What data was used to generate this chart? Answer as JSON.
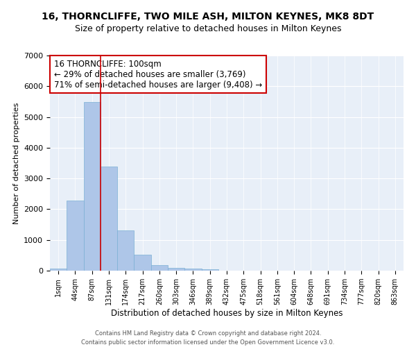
{
  "title": "16, THORNCLIFFE, TWO MILE ASH, MILTON KEYNES, MK8 8DT",
  "subtitle": "Size of property relative to detached houses in Milton Keynes",
  "xlabel": "Distribution of detached houses by size in Milton Keynes",
  "ylabel": "Number of detached properties",
  "footer_line1": "Contains HM Land Registry data © Crown copyright and database right 2024.",
  "footer_line2": "Contains public sector information licensed under the Open Government Licence v3.0.",
  "annotation_line1": "16 THORNCLIFFE: 100sqm",
  "annotation_line2": "← 29% of detached houses are smaller (3,769)",
  "annotation_line3": "71% of semi-detached houses are larger (9,408) →",
  "bar_color": "#aec6e8",
  "bar_edge_color": "#7aafd4",
  "vline_color": "#cc0000",
  "vline_x": 2.5,
  "categories": [
    "1sqm",
    "44sqm",
    "87sqm",
    "131sqm",
    "174sqm",
    "217sqm",
    "260sqm",
    "303sqm",
    "346sqm",
    "389sqm",
    "432sqm",
    "475sqm",
    "518sqm",
    "561sqm",
    "604sqm",
    "648sqm",
    "691sqm",
    "734sqm",
    "777sqm",
    "820sqm",
    "863sqm"
  ],
  "values": [
    70,
    2270,
    5480,
    3380,
    1310,
    510,
    175,
    95,
    65,
    55,
    0,
    0,
    0,
    0,
    0,
    0,
    0,
    0,
    0,
    0,
    0
  ],
  "ylim": [
    0,
    7000
  ],
  "yticks": [
    0,
    1000,
    2000,
    3000,
    4000,
    5000,
    6000,
    7000
  ],
  "background_color": "#e8eff8",
  "title_fontsize": 10,
  "subtitle_fontsize": 9,
  "annotation_fontsize": 8.5,
  "ylabel_fontsize": 8,
  "xlabel_fontsize": 8.5,
  "footer_fontsize": 6
}
